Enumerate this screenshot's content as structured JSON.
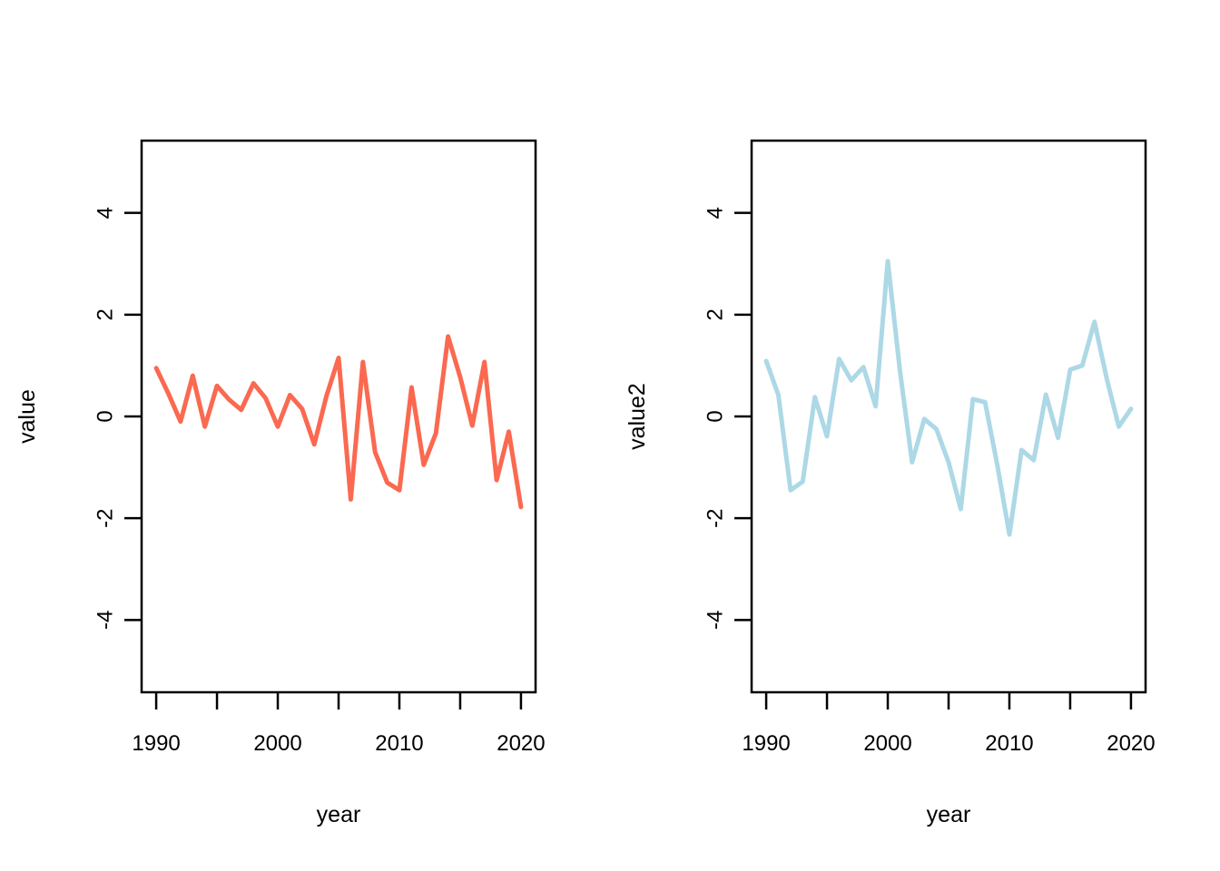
{
  "figure": {
    "background_color": "#ffffff",
    "text_color": "#000000",
    "panel_count": 2
  },
  "chart_data": [
    {
      "type": "line",
      "title": "",
      "xlabel": "year",
      "ylabel": "value",
      "line_color": "#FA6950",
      "grid": false,
      "box_frame": true,
      "legend": "none",
      "xlim": [
        1988.8,
        2021.2
      ],
      "ylim": [
        -5.42,
        5.42
      ],
      "x_ticks": [
        1990,
        1995,
        2000,
        2005,
        2010,
        2015,
        2020
      ],
      "x_labeled_ticks": [
        1990,
        2000,
        2010,
        2020
      ],
      "y_ticks": [
        -4,
        -2,
        0,
        2,
        4
      ],
      "x": [
        1990,
        1991,
        1992,
        1993,
        1994,
        1995,
        1996,
        1997,
        1998,
        1999,
        2000,
        2001,
        2002,
        2003,
        2004,
        2005,
        2006,
        2007,
        2008,
        2009,
        2010,
        2011,
        2012,
        2013,
        2014,
        2015,
        2016,
        2017,
        2018,
        2019,
        2020
      ],
      "values": [
        0.95,
        0.45,
        -0.1,
        0.8,
        -0.2,
        0.6,
        0.33,
        0.13,
        0.65,
        0.36,
        -0.2,
        0.42,
        0.15,
        -0.55,
        0.4,
        1.15,
        -1.63,
        1.07,
        -0.7,
        -1.3,
        -1.45,
        0.57,
        -0.95,
        -0.33,
        1.57,
        0.77,
        -0.18,
        1.07,
        -1.25,
        -0.3,
        -1.78
      ]
    },
    {
      "type": "line",
      "title": "",
      "xlabel": "year",
      "ylabel": "value2",
      "line_color": "#ADD8E6",
      "grid": false,
      "box_frame": true,
      "legend": "none",
      "xlim": [
        1988.8,
        2021.2
      ],
      "ylim": [
        -5.42,
        5.42
      ],
      "x_ticks": [
        1990,
        1995,
        2000,
        2005,
        2010,
        2015,
        2020
      ],
      "x_labeled_ticks": [
        1990,
        2000,
        2010,
        2020
      ],
      "y_ticks": [
        -4,
        -2,
        0,
        2,
        4
      ],
      "x": [
        1990,
        1991,
        1992,
        1993,
        1994,
        1995,
        1996,
        1997,
        1998,
        1999,
        2000,
        2001,
        2002,
        2003,
        2004,
        2005,
        2006,
        2007,
        2008,
        2009,
        2010,
        2011,
        2012,
        2013,
        2014,
        2015,
        2016,
        2017,
        2018,
        2019,
        2020
      ],
      "values": [
        1.09,
        0.42,
        -1.45,
        -1.28,
        0.38,
        -0.39,
        1.13,
        0.71,
        0.97,
        0.2,
        3.05,
        0.9,
        -0.9,
        -0.05,
        -0.25,
        -0.9,
        -1.82,
        0.34,
        0.28,
        -0.95,
        -2.32,
        -0.66,
        -0.86,
        0.43,
        -0.42,
        0.92,
        1.0,
        1.86,
        0.75,
        -0.2,
        0.15
      ]
    }
  ]
}
